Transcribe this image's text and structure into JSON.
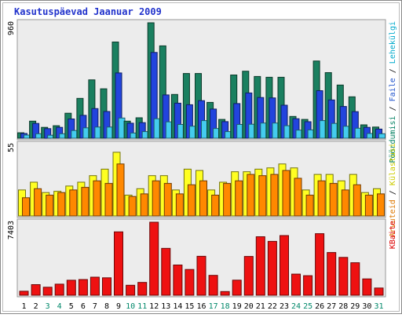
{
  "chart_data": {
    "type": "bar",
    "title": "Kasutuspäevad Jaanuar 2009",
    "categories": [
      "1",
      "2",
      "3",
      "4",
      "5",
      "6",
      "7",
      "8",
      "9",
      "10",
      "11",
      "12",
      "13",
      "14",
      "15",
      "16",
      "17",
      "18",
      "19",
      "20",
      "21",
      "22",
      "23",
      "24",
      "25",
      "26",
      "27",
      "28",
      "29",
      "30",
      "31"
    ],
    "weekend_days": [
      "3",
      "4",
      "10",
      "11",
      "17",
      "18",
      "24",
      "25",
      "31"
    ],
    "panels": [
      {
        "id": "top",
        "ymax_label": "960",
        "ylim": [
          0,
          960
        ],
        "right_labels": [
          {
            "text": "Pöördumisi",
            "color": "#008060"
          },
          {
            "text": "Faile",
            "color": "#2255cc"
          },
          {
            "text": "Lehekülgi",
            "color": "#00aacc"
          }
        ],
        "series": [
          {
            "name": "Pöördumisi",
            "color": "#1a8060",
            "values": [
              45,
              142,
              90,
              104,
              208,
              331,
              485,
              411,
              800,
              142,
              170,
              960,
              768,
              364,
              538,
              538,
              298,
              156,
              526,
              557,
              513,
              507,
              507,
              181,
              156,
              642,
              545,
              442,
              344,
              111,
              93
            ]
          },
          {
            "name": "Faile",
            "color": "#2244dd",
            "values": [
              39,
              123,
              80,
              90,
              160,
              190,
              246,
              222,
              543,
              125,
              129,
              713,
              360,
              291,
              278,
              312,
              242,
              138,
              288,
              376,
              338,
              335,
              274,
              162,
              137,
              395,
              318,
              264,
              221,
              90,
              76
            ]
          },
          {
            "name": "Lehekülgi",
            "color": "#44ccee",
            "values": [
              26,
              37,
              25,
              37,
              64,
              86,
              93,
              93,
              168,
              43,
              55,
              162,
              136,
              114,
              100,
              146,
              81,
              55,
              114,
              116,
              126,
              126,
              104,
              67,
              69,
              146,
              123,
              99,
              83,
              39,
              37
            ]
          }
        ]
      },
      {
        "id": "middle",
        "ymax_label": "55",
        "ylim": [
          0,
          55
        ],
        "right_labels": [
          {
            "text": "Arvuteid",
            "color": "#dd7700"
          },
          {
            "text": "Külastusi",
            "color": "#cccc00"
          }
        ],
        "series": [
          {
            "name": "Külastusi",
            "color": "#ffff22",
            "values": [
              20,
              26,
              18,
              19,
              23,
              26,
              31,
              36,
              49,
              16,
              21,
              31,
              31,
              20,
              36,
              35,
              20,
              26,
              34,
              34,
              36,
              37,
              40,
              37,
              20,
              32,
              32,
              27,
              32,
              18,
              21
            ]
          },
          {
            "name": "Arvuteid",
            "color": "#ff8800",
            "values": [
              14,
              21,
              16,
              18,
              20,
              22,
              27,
              25,
              40,
              15,
              17,
              27,
              25,
              17,
              24,
              27,
              16,
              25,
              27,
              32,
              31,
              32,
              35,
              29,
              16,
              27,
              25,
              20,
              24,
              16,
              17
            ]
          }
        ]
      },
      {
        "id": "bottom",
        "ymax_label": "7403",
        "ylim": [
          0,
          7403
        ],
        "right_labels": [
          {
            "text": "KBaite",
            "color": "#dd0000"
          }
        ],
        "series": [
          {
            "name": "KBaite",
            "color": "#ee1111",
            "values": [
              402,
              1078,
              808,
              1120,
              1522,
              1593,
              1831,
              1768,
              6425,
              1007,
              1297,
              7403,
              4750,
              3065,
              2607,
              3947,
              2016,
              374,
              1530,
              3933,
              5932,
              5460,
              6049,
              2142,
              1985,
              6240,
              4328,
              3833,
              3299,
              1654,
              734
            ]
          }
        ]
      }
    ]
  }
}
